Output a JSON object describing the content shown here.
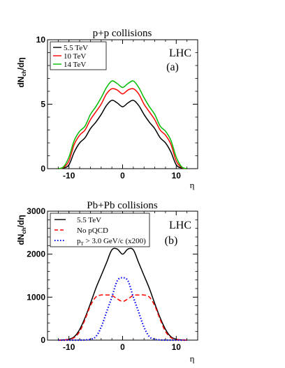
{
  "chart_data": [
    {
      "type": "line",
      "title": "p+p collisions",
      "xlabel": "η",
      "ylabel": "dN_ch/dη",
      "ylabel_main": "dN",
      "ylabel_sub": "ch",
      "ylabel_tail": "/dη",
      "xlim": [
        -14,
        14
      ],
      "ylim": [
        0,
        10
      ],
      "x_ticks": [
        -10,
        0,
        10
      ],
      "y_ticks": [
        0,
        5,
        10
      ],
      "annotations": [
        "LHC",
        "(a)"
      ],
      "legend_position": "top-left",
      "series": [
        {
          "name": "5.5 TeV",
          "color": "#000000",
          "dash": "solid",
          "x": [
            -12,
            -11,
            -10,
            -9,
            -8,
            -7,
            -6,
            -5,
            -4,
            -3,
            -2,
            -1,
            0,
            1,
            2,
            3,
            4,
            5,
            6,
            7,
            8,
            9,
            10,
            11,
            12
          ],
          "y": [
            0,
            0.05,
            0.3,
            1.3,
            2.0,
            2.4,
            3.1,
            3.6,
            4.2,
            4.9,
            5.3,
            5.1,
            4.8,
            5.1,
            5.3,
            4.9,
            4.2,
            3.6,
            3.1,
            2.4,
            2.0,
            1.3,
            0.3,
            0.05,
            0
          ]
        },
        {
          "name": "10 TeV",
          "color": "#ff0000",
          "dash": "solid",
          "x": [
            -12,
            -11,
            -10,
            -9,
            -8,
            -7,
            -6,
            -5,
            -4,
            -3,
            -2,
            -1,
            0,
            1,
            2,
            3,
            4,
            5,
            6,
            7,
            8,
            9,
            10,
            11,
            12
          ],
          "y": [
            0,
            0.1,
            0.6,
            1.9,
            2.6,
            3.0,
            3.8,
            4.4,
            5.0,
            5.8,
            6.2,
            6.1,
            5.8,
            6.1,
            6.2,
            5.8,
            5.0,
            4.4,
            3.8,
            3.0,
            2.6,
            1.9,
            0.6,
            0.1,
            0
          ]
        },
        {
          "name": "14 TeV",
          "color": "#00bb00",
          "dash": "solid",
          "x": [
            -12,
            -11,
            -10,
            -9,
            -8,
            -7,
            -6,
            -5,
            -4,
            -3,
            -2,
            -1,
            0,
            1,
            2,
            3,
            4,
            5,
            6,
            7,
            8,
            9,
            10,
            11,
            12
          ],
          "y": [
            0,
            0.15,
            0.9,
            2.2,
            2.9,
            3.3,
            4.2,
            4.8,
            5.5,
            6.3,
            6.8,
            6.6,
            6.3,
            6.6,
            6.8,
            6.3,
            5.5,
            4.8,
            4.2,
            3.3,
            2.9,
            2.2,
            0.9,
            0.15,
            0
          ]
        }
      ]
    },
    {
      "type": "line",
      "title": "Pb+Pb collisions",
      "xlabel": "η",
      "ylabel": "dN_ch/dη",
      "ylabel_main": "dN",
      "ylabel_sub": "ch",
      "ylabel_tail": "/dη",
      "xlim": [
        -14,
        14
      ],
      "ylim": [
        0,
        3000
      ],
      "x_ticks": [
        -10,
        0,
        10
      ],
      "y_ticks": [
        0,
        1000,
        2000,
        3000
      ],
      "annotations": [
        "LHC",
        "(b)"
      ],
      "legend_position": "top-left",
      "series": [
        {
          "name": "5.5 TeV",
          "color": "#000000",
          "dash": "solid",
          "x": [
            -12,
            -11,
            -10,
            -9,
            -8,
            -7,
            -6,
            -5,
            -4,
            -3,
            -2,
            -1,
            0,
            1,
            2,
            3,
            4,
            5,
            6,
            7,
            8,
            9,
            10,
            11,
            12
          ],
          "y": [
            0,
            5,
            20,
            80,
            250,
            520,
            850,
            1200,
            1500,
            1800,
            2100,
            2120,
            2000,
            2120,
            2100,
            1800,
            1500,
            1200,
            850,
            520,
            250,
            80,
            20,
            5,
            0
          ]
        },
        {
          "name": "No pQCD",
          "name_prefix": "No pQCD",
          "color": "#ff0000",
          "dash": "dashed",
          "x": [
            -12,
            -11,
            -10,
            -9,
            -8,
            -7,
            -6,
            -5,
            -4,
            -3,
            -2,
            -1,
            0,
            1,
            2,
            3,
            4,
            5,
            6,
            7,
            8,
            9,
            10,
            11,
            12
          ],
          "y": [
            0,
            5,
            15,
            60,
            200,
            480,
            800,
            1000,
            1050,
            1050,
            1040,
            960,
            900,
            960,
            1040,
            1050,
            1050,
            1000,
            800,
            480,
            200,
            60,
            15,
            5,
            0
          ]
        },
        {
          "name": "p_T > 3.0 GeV/c (x200)",
          "name_p": "p",
          "name_sub": "T",
          "name_tail": " > 3.0 GeV/c (x200)",
          "color": "#0000ff",
          "dash": "dotted",
          "x": [
            -12,
            -11,
            -10,
            -9,
            -8,
            -7,
            -6,
            -5,
            -4,
            -3,
            -2,
            -1,
            0,
            1,
            2,
            3,
            4,
            5,
            6,
            7,
            8,
            9,
            10,
            11,
            12
          ],
          "y": [
            0,
            0,
            0,
            0,
            0,
            5,
            20,
            80,
            300,
            650,
            1000,
            1380,
            1450,
            1380,
            1000,
            650,
            300,
            80,
            20,
            5,
            0,
            0,
            0,
            0,
            0
          ]
        }
      ]
    }
  ]
}
